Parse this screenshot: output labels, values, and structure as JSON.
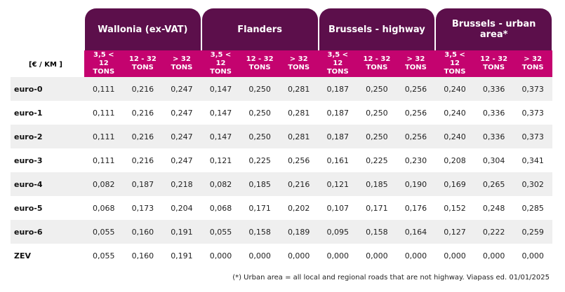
{
  "table": {
    "unit": "[€ / KM ]",
    "groups": [
      {
        "title": "Wallonia (ex-VAT)",
        "columns": [
          "3,5 < 12 TONS",
          "12 - 32 TONS",
          "> 32 TONS"
        ]
      },
      {
        "title": "Flanders",
        "columns": [
          "3,5 < 12 TONS",
          "12 - 32 TONS",
          "> 32 TONS"
        ]
      },
      {
        "title": "Brussels - highway",
        "columns": [
          "3,5 < 12 TONS",
          "12 - 32 TONS",
          "> 32 TONS"
        ]
      },
      {
        "title": "Brussels - urban area*",
        "columns": [
          "3,5 < 12 TONS",
          "12 - 32 TONS",
          "> 32 TONS"
        ]
      }
    ],
    "rows": [
      {
        "label": "euro-0",
        "values": [
          "0,111",
          "0,216",
          "0,247",
          "0,147",
          "0,250",
          "0,281",
          "0,187",
          "0,250",
          "0,256",
          "0,240",
          "0,336",
          "0,373"
        ]
      },
      {
        "label": "euro-1",
        "values": [
          "0,111",
          "0,216",
          "0,247",
          "0,147",
          "0,250",
          "0,281",
          "0,187",
          "0,250",
          "0,256",
          "0,240",
          "0,336",
          "0,373"
        ]
      },
      {
        "label": "euro-2",
        "values": [
          "0,111",
          "0,216",
          "0,247",
          "0,147",
          "0,250",
          "0,281",
          "0,187",
          "0,250",
          "0,256",
          "0,240",
          "0,336",
          "0,373"
        ]
      },
      {
        "label": "euro-3",
        "values": [
          "0,111",
          "0,216",
          "0,247",
          "0,121",
          "0,225",
          "0,256",
          "0,161",
          "0,225",
          "0,230",
          "0,208",
          "0,304",
          "0,341"
        ]
      },
      {
        "label": "euro-4",
        "values": [
          "0,082",
          "0,187",
          "0,218",
          "0,082",
          "0,185",
          "0,216",
          "0,121",
          "0,185",
          "0,190",
          "0,169",
          "0,265",
          "0,302"
        ]
      },
      {
        "label": "euro-5",
        "values": [
          "0,068",
          "0,173",
          "0,204",
          "0,068",
          "0,171",
          "0,202",
          "0,107",
          "0,171",
          "0,176",
          "0,152",
          "0,248",
          "0,285"
        ]
      },
      {
        "label": "euro-6",
        "values": [
          "0,055",
          "0,160",
          "0,191",
          "0,055",
          "0,158",
          "0,189",
          "0,095",
          "0,158",
          "0,164",
          "0,127",
          "0,222",
          "0,259"
        ]
      },
      {
        "label": "ZEV",
        "values": [
          "0,055",
          "0,160",
          "0,191",
          "0,000",
          "0,000",
          "0,000",
          "0,000",
          "0,000",
          "0,000",
          "0,000",
          "0,000",
          "0,000"
        ]
      }
    ],
    "footnote": "(*) Urban area = all local and regional roads that are not highway. Viapass ed. 01/01/2025"
  }
}
